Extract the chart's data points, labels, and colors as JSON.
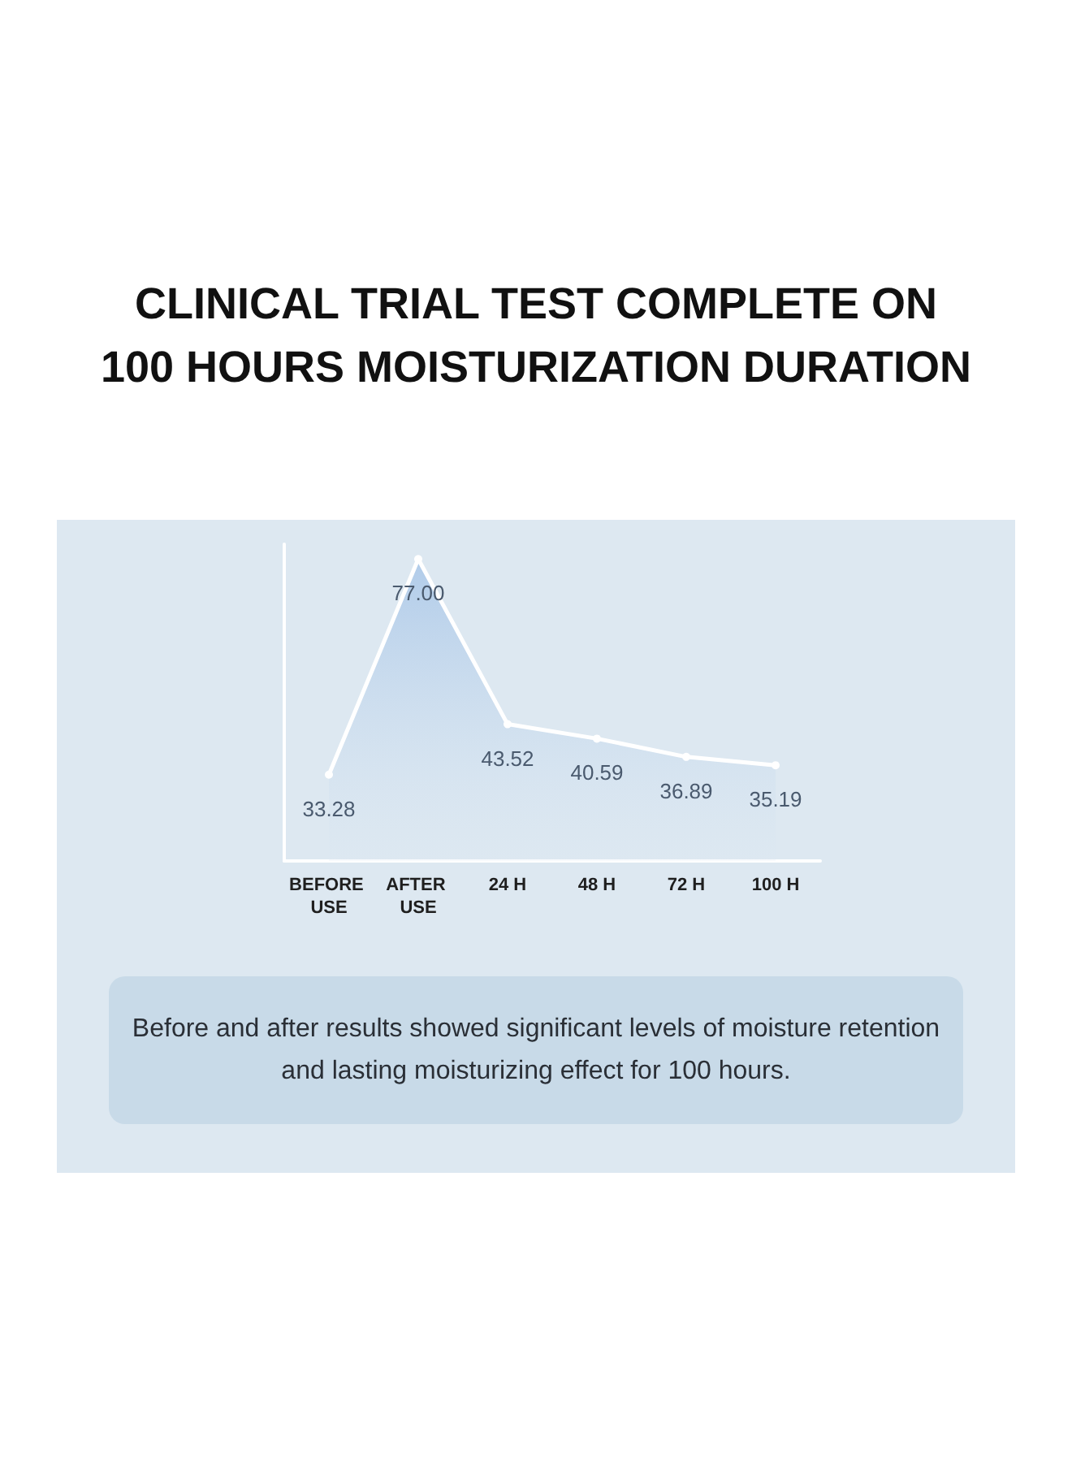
{
  "chart_data": {
    "type": "area",
    "title": "CLINICAL TRIAL TEST COMPLETE ON 100 HOURS MOISTURIZATION DURATION",
    "categories": [
      "BEFORE USE",
      "AFTER USE",
      "24 H",
      "48 H",
      "72 H",
      "100 H"
    ],
    "values": [
      33.28,
      77.0,
      43.52,
      40.59,
      36.89,
      35.19
    ],
    "color": "#9dbfe6",
    "value_labels": [
      "33.28",
      "77.00",
      "43.52",
      "40.59",
      "36.89",
      "35.19"
    ],
    "grid": false,
    "marker": "circle",
    "annotations": [
      "Before and after results showed significant levels of moisture retention and  lasting moisturizing effect for 100 hours."
    ]
  }
}
